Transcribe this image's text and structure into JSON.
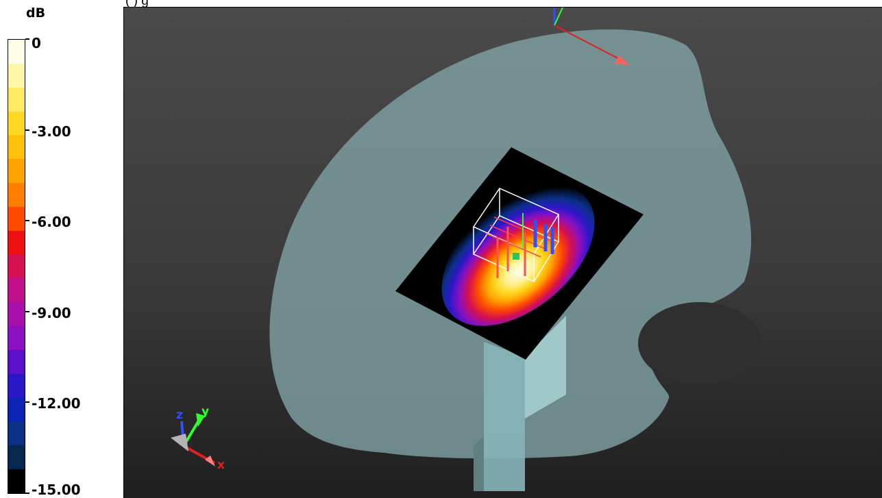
{
  "title_fragment": "(                )                g",
  "legend": {
    "unit": "dB",
    "ticks": [
      {
        "label": "0",
        "value": 0
      },
      {
        "label": "-3.00",
        "value": -3
      },
      {
        "label": "-6.00",
        "value": -6
      },
      {
        "label": "-9.00",
        "value": -9
      },
      {
        "label": "-12.00",
        "value": -12
      },
      {
        "label": "-15.00",
        "value": -15
      }
    ],
    "range": [
      -15,
      0
    ],
    "colors": [
      "#fffde8",
      "#fff6a8",
      "#ffea62",
      "#ffd822",
      "#ffc10a",
      "#ffa300",
      "#ff7d00",
      "#ff4a00",
      "#ee1010",
      "#d51050",
      "#c0108a",
      "#a810ac",
      "#8a10c0",
      "#5a10c8",
      "#2a18c8",
      "#0c24b4",
      "#0c3086",
      "#082850",
      "#000000"
    ]
  },
  "axes_triad": {
    "z_label": "z",
    "y_label": "y",
    "x_label": "x",
    "colors": {
      "x": "#e02020",
      "y": "#30ff30",
      "z": "#3050ff"
    }
  },
  "colors": {
    "phantom": "#7fa0a2",
    "background_top": "#4a4a4a",
    "background_bottom": "#1f1f1f",
    "scan_plane": "#000000"
  }
}
